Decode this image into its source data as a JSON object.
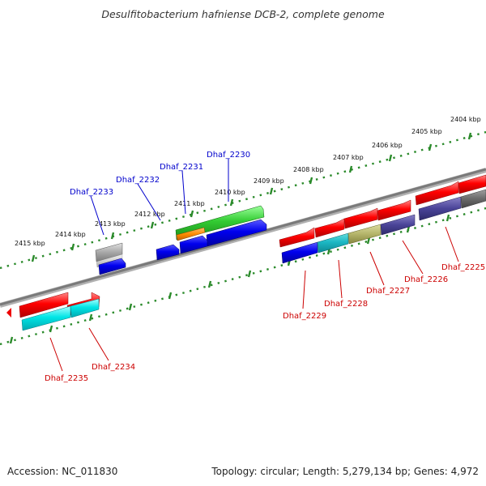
{
  "title": "Desulfitobacterium hafniense DCB-2, complete genome",
  "footer": {
    "accession": "Accession: NC_011830",
    "summary": "Topology: circular; Length: 5,279,134 bp; Genes: 4,972"
  },
  "colors": {
    "dots": "#2a8a2a",
    "backbone": "#8a8a8a",
    "label_blue": "#0000cc",
    "label_red": "#cc0000"
  },
  "kbp_labels": [
    "2404 kbp",
    "2405 kbp",
    "2406 kbp",
    "2407 kbp",
    "2408 kbp",
    "2409 kbp",
    "2410 kbp",
    "2411 kbp",
    "2412 kbp",
    "2413 kbp",
    "2414 kbp",
    "2415 kbp"
  ],
  "gene_labels": {
    "top": [
      "Dhaf_2230",
      "Dhaf_2231",
      "Dhaf_2232",
      "Dhaf_2233"
    ],
    "bottom": [
      "Dhaf_2225",
      "Dhaf_2226",
      "Dhaf_2227",
      "Dhaf_2228",
      "Dhaf_2229",
      "Dhaf_2234",
      "Dhaf_2235"
    ]
  }
}
